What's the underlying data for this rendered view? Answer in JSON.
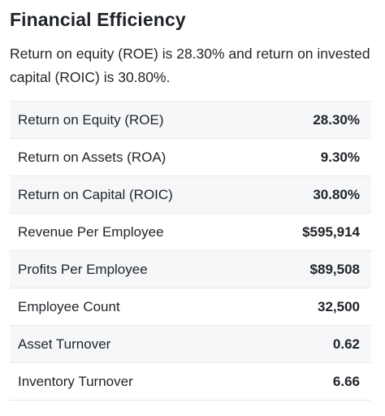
{
  "section": {
    "title": "Financial Efficiency",
    "summary": "Return on equity (ROE) is 28.30% and return on invested capital (ROIC) is 30.80%."
  },
  "metrics": [
    {
      "label": "Return on Equity (ROE)",
      "value": "28.30%"
    },
    {
      "label": "Return on Assets (ROA)",
      "value": "9.30%"
    },
    {
      "label": "Return on Capital (ROIC)",
      "value": "30.80%"
    },
    {
      "label": "Revenue Per Employee",
      "value": "$595,914"
    },
    {
      "label": "Profits Per Employee",
      "value": "$89,508"
    },
    {
      "label": "Employee Count",
      "value": "32,500"
    },
    {
      "label": "Asset Turnover",
      "value": "0.62"
    },
    {
      "label": "Inventory Turnover",
      "value": "6.66"
    }
  ],
  "colors": {
    "text": "#1f2328",
    "row_shade": "#f6f7f8",
    "divider": "#e6e8eb"
  }
}
